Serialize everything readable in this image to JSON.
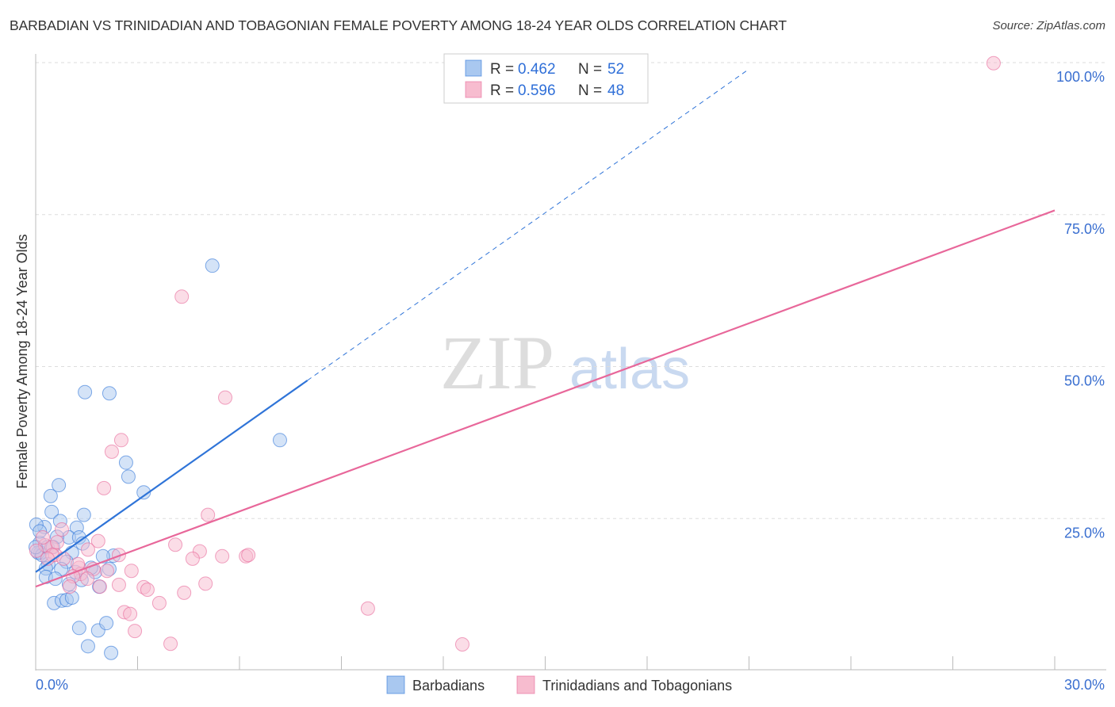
{
  "chart_data": {
    "type": "scatter",
    "title": "BARBADIAN VS TRINIDADIAN AND TOBAGONIAN FEMALE POVERTY AMONG 18-24 YEAR OLDS CORRELATION CHART",
    "source": "Source: ZipAtlas.com",
    "ylabel": "Female Poverty Among 18-24 Year Olds",
    "xlim": [
      0,
      30
    ],
    "ylim": [
      0,
      100
    ],
    "x_tick_labels": [
      "0.0%",
      "30.0%"
    ],
    "y_ticks": [
      25,
      50,
      75,
      100
    ],
    "y_tick_labels": [
      "25.0%",
      "50.0%",
      "75.0%",
      "100.0%"
    ],
    "watermark": "ZIPatlas",
    "colors": {
      "blue": "#2f74d8",
      "pink": "#e8679a",
      "blue_fill": "#a9c8f0",
      "pink_fill": "#f7bccf"
    },
    "legend_stats": [
      {
        "r_label": "R = ",
        "r": "0.462",
        "n_label": "N = ",
        "n": "52"
      },
      {
        "r_label": "R = ",
        "r": "0.596",
        "n_label": "N = ",
        "n": "48"
      }
    ],
    "series": [
      {
        "name": "Barbadians",
        "trend": {
          "x0": 0,
          "y0": 16.2,
          "x_solid_end": 8.0,
          "x_dash_end": 21.0,
          "slope": 3.94
        },
        "points": [
          [
            5.2,
            66.6
          ],
          [
            1.45,
            45.8
          ],
          [
            2.17,
            45.6
          ],
          [
            7.19,
            37.9
          ],
          [
            2.66,
            34.2
          ],
          [
            2.73,
            31.9
          ],
          [
            3.18,
            29.3
          ],
          [
            0.68,
            30.5
          ],
          [
            0.44,
            28.7
          ],
          [
            0.47,
            26.1
          ],
          [
            1.42,
            25.6
          ],
          [
            0.72,
            24.6
          ],
          [
            0.26,
            23.6
          ],
          [
            1.21,
            23.5
          ],
          [
            0.12,
            21.0
          ],
          [
            0.98,
            21.9
          ],
          [
            1.28,
            21.9
          ],
          [
            0.63,
            22.0
          ],
          [
            1.38,
            20.9
          ],
          [
            1.07,
            19.4
          ],
          [
            2.29,
            18.9
          ],
          [
            1.98,
            18.8
          ],
          [
            0.91,
            17.9
          ],
          [
            0.37,
            17.5
          ],
          [
            0.3,
            16.8
          ],
          [
            0.75,
            16.7
          ],
          [
            0.14,
            19.4
          ],
          [
            0.07,
            19.4
          ],
          [
            1.75,
            16.2
          ],
          [
            2.17,
            16.7
          ],
          [
            1.35,
            14.9
          ],
          [
            0.3,
            15.4
          ],
          [
            0.58,
            15.1
          ],
          [
            0.98,
            14.2
          ],
          [
            1.87,
            13.8
          ],
          [
            0.54,
            11.1
          ],
          [
            0.77,
            11.5
          ],
          [
            0.91,
            11.6
          ],
          [
            1.07,
            12.0
          ],
          [
            1.28,
            7.0
          ],
          [
            1.84,
            6.6
          ],
          [
            2.08,
            7.8
          ],
          [
            1.54,
            4.0
          ],
          [
            2.22,
            2.9
          ],
          [
            0.02,
            24.0
          ],
          [
            0.19,
            19.0
          ],
          [
            0.35,
            20.3
          ],
          [
            0.0,
            20.3
          ],
          [
            0.12,
            22.9
          ],
          [
            1.63,
            16.9
          ],
          [
            0.51,
            20.3
          ],
          [
            1.17,
            16.2
          ]
        ]
      },
      {
        "name": "Trinidadians and Tobagonians",
        "trend": {
          "x0": 0,
          "y0": 13.8,
          "x_solid_end": 30,
          "slope": 2.063
        },
        "points": [
          [
            28.2,
            99.9
          ],
          [
            4.3,
            61.5
          ],
          [
            5.58,
            44.9
          ],
          [
            2.52,
            37.9
          ],
          [
            2.24,
            36.0
          ],
          [
            2.01,
            30.0
          ],
          [
            5.07,
            25.6
          ],
          [
            4.11,
            20.7
          ],
          [
            4.83,
            19.6
          ],
          [
            4.62,
            18.4
          ],
          [
            5.49,
            18.8
          ],
          [
            6.19,
            18.8
          ],
          [
            6.26,
            19.0
          ],
          [
            1.84,
            21.3
          ],
          [
            1.54,
            19.9
          ],
          [
            0.77,
            23.2
          ],
          [
            0.47,
            20.3
          ],
          [
            0.58,
            19.0
          ],
          [
            0.28,
            20.6
          ],
          [
            0.02,
            19.7
          ],
          [
            2.82,
            16.4
          ],
          [
            1.7,
            16.7
          ],
          [
            1.28,
            16.9
          ],
          [
            1.33,
            15.9
          ],
          [
            5.0,
            14.3
          ],
          [
            2.45,
            14.1
          ],
          [
            3.18,
            13.7
          ],
          [
            3.29,
            13.3
          ],
          [
            4.37,
            12.8
          ],
          [
            3.64,
            11.1
          ],
          [
            2.61,
            9.6
          ],
          [
            2.78,
            9.3
          ],
          [
            2.92,
            6.5
          ],
          [
            3.97,
            4.4
          ],
          [
            9.78,
            10.2
          ],
          [
            12.56,
            4.3
          ],
          [
            1.89,
            13.8
          ],
          [
            1.1,
            15.5
          ],
          [
            0.49,
            19.0
          ],
          [
            0.21,
            21.9
          ],
          [
            0.82,
            18.4
          ],
          [
            1.0,
            13.8
          ],
          [
            1.24,
            17.5
          ],
          [
            2.1,
            16.4
          ],
          [
            0.63,
            21.1
          ],
          [
            0.35,
            18.4
          ],
          [
            1.52,
            15.1
          ],
          [
            2.45,
            19.0
          ]
        ]
      }
    ]
  }
}
